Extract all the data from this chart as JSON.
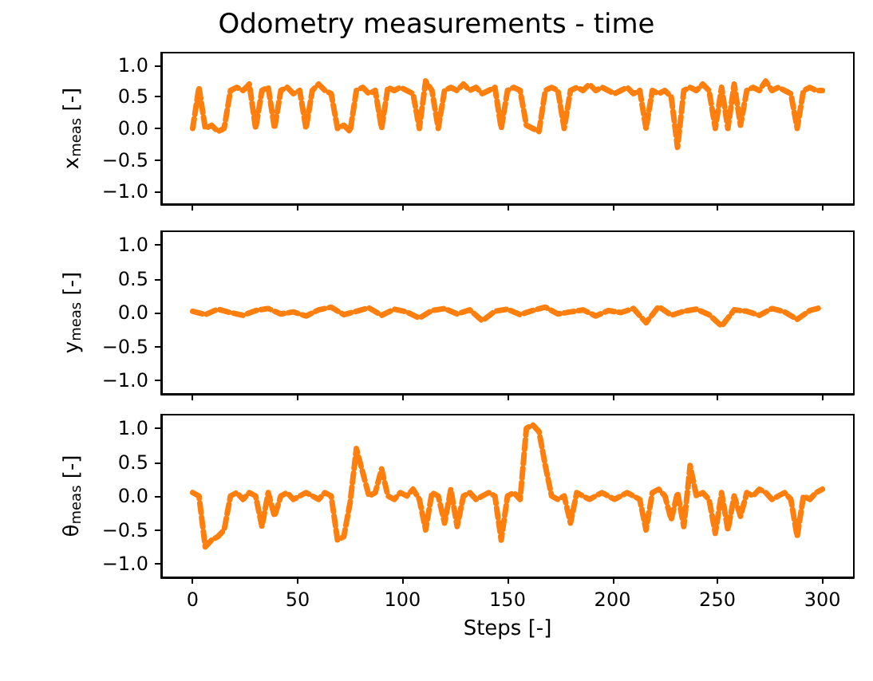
{
  "chart_data": [
    {
      "type": "line",
      "title": "Odometry measurements - time",
      "ylabel": "x$_{meas}$ [-]",
      "xlim": [
        -15,
        315
      ],
      "ylim": [
        -1.2,
        1.2
      ],
      "xticks": [
        0,
        50,
        100,
        150,
        200,
        250,
        300
      ],
      "yticks": [
        {
          "value": -1,
          "label": "−1.0"
        },
        {
          "value": -0.5,
          "label": "−0.5"
        },
        {
          "value": 0,
          "label": "0.0"
        },
        {
          "value": 0.5,
          "label": "0.5"
        },
        {
          "value": 1,
          "label": "1.0"
        }
      ],
      "tick_labels": "y",
      "grid": false,
      "line_style": "dashed",
      "marker": "none",
      "x": [
        0,
        3,
        6,
        9,
        12,
        15,
        18,
        21,
        24,
        27,
        30,
        33,
        36,
        39,
        42,
        45,
        48,
        51,
        54,
        57,
        60,
        63,
        66,
        69,
        72,
        75,
        78,
        81,
        84,
        87,
        90,
        93,
        96,
        99,
        102,
        105,
        108,
        111,
        114,
        117,
        120,
        123,
        126,
        129,
        132,
        135,
        138,
        141,
        144,
        147,
        150,
        153,
        156,
        159,
        162,
        165,
        168,
        171,
        174,
        177,
        180,
        183,
        186,
        189,
        192,
        195,
        198,
        201,
        204,
        207,
        210,
        213,
        216,
        219,
        222,
        225,
        228,
        231,
        234,
        237,
        240,
        243,
        246,
        249,
        252,
        255,
        258,
        261,
        264,
        267,
        270,
        273,
        276,
        279,
        282,
        285,
        288,
        291,
        294,
        297,
        300
      ],
      "series": [
        {
          "color": "#ff7f0e",
          "values": [
            0.0,
            0.65,
            0.0,
            0.05,
            -0.05,
            0.0,
            0.6,
            0.65,
            0.6,
            0.7,
            0.0,
            0.6,
            0.65,
            0.0,
            0.6,
            0.65,
            0.55,
            0.6,
            0.0,
            0.6,
            0.7,
            0.6,
            0.55,
            0.0,
            0.05,
            -0.05,
            0.6,
            0.65,
            0.55,
            0.6,
            0.0,
            0.65,
            0.6,
            0.65,
            0.6,
            0.55,
            0.0,
            0.75,
            0.6,
            0.0,
            0.6,
            0.65,
            0.6,
            0.7,
            0.6,
            0.65,
            0.55,
            0.6,
            0.65,
            0.0,
            0.6,
            0.65,
            0.6,
            0.05,
            0.0,
            -0.05,
            0.6,
            0.65,
            0.6,
            0.0,
            0.6,
            0.65,
            0.6,
            0.7,
            0.6,
            0.65,
            0.6,
            0.55,
            0.6,
            0.65,
            0.55,
            0.6,
            0.0,
            0.6,
            0.55,
            0.6,
            0.5,
            -0.3,
            0.6,
            0.65,
            0.6,
            0.7,
            0.6,
            0.0,
            0.65,
            0.0,
            0.7,
            0.05,
            0.6,
            0.65,
            0.6,
            0.75,
            0.6,
            0.65,
            0.6,
            0.55,
            0.0,
            0.6,
            0.65,
            0.6,
            0.6
          ]
        }
      ]
    },
    {
      "type": "line",
      "ylabel": "y$_{meas}$ [-]",
      "xlim": [
        -15,
        315
      ],
      "ylim": [
        -1.2,
        1.2
      ],
      "xticks": [
        0,
        50,
        100,
        150,
        200,
        250,
        300
      ],
      "yticks": [
        {
          "value": -1,
          "label": "−1.0"
        },
        {
          "value": -0.5,
          "label": "−0.5"
        },
        {
          "value": 0,
          "label": "0.0"
        },
        {
          "value": 0.5,
          "label": "0.5"
        },
        {
          "value": 1,
          "label": "1.0"
        }
      ],
      "tick_labels": "y",
      "grid": false,
      "line_style": "dashed",
      "marker": "none",
      "x": [
        0,
        6,
        12,
        18,
        24,
        30,
        36,
        42,
        48,
        54,
        60,
        66,
        72,
        78,
        84,
        90,
        96,
        102,
        108,
        114,
        120,
        126,
        132,
        138,
        144,
        150,
        156,
        162,
        168,
        174,
        180,
        186,
        192,
        198,
        204,
        210,
        216,
        222,
        228,
        234,
        240,
        246,
        252,
        258,
        264,
        270,
        276,
        282,
        288,
        294,
        300
      ],
      "series": [
        {
          "color": "#ff7f0e",
          "values": [
            0.02,
            -0.03,
            0.05,
            0.0,
            -0.04,
            0.03,
            0.06,
            -0.02,
            0.01,
            -0.05,
            0.04,
            0.08,
            -0.03,
            0.02,
            0.07,
            -0.04,
            0.05,
            0.01,
            -0.08,
            0.03,
            0.06,
            -0.02,
            0.04,
            -0.12,
            0.02,
            0.05,
            -0.03,
            0.03,
            0.08,
            -0.02,
            0.01,
            0.04,
            -0.05,
            0.03,
            0.0,
            0.06,
            -0.15,
            0.09,
            -0.04,
            0.02,
            0.05,
            -0.03,
            -0.2,
            0.04,
            0.02,
            -0.04,
            0.06,
            0.01,
            -0.1,
            0.03,
            0.08
          ]
        }
      ]
    },
    {
      "type": "line",
      "xlabel": "Steps [-]",
      "ylabel": "θ$_{meas}$ [-]",
      "xlim": [
        -15,
        315
      ],
      "ylim": [
        -1.2,
        1.2
      ],
      "xticks": [
        0,
        50,
        100,
        150,
        200,
        250,
        300
      ],
      "yticks": [
        {
          "value": -1,
          "label": "−1.0"
        },
        {
          "value": -0.5,
          "label": "−0.5"
        },
        {
          "value": 0,
          "label": "0.0"
        },
        {
          "value": 0.5,
          "label": "0.5"
        },
        {
          "value": 1,
          "label": "1.0"
        }
      ],
      "grid": false,
      "line_style": "dashed",
      "marker": "none",
      "x": [
        0,
        3,
        6,
        9,
        12,
        15,
        18,
        21,
        24,
        27,
        30,
        33,
        36,
        39,
        42,
        45,
        48,
        51,
        54,
        57,
        60,
        63,
        66,
        69,
        72,
        75,
        78,
        81,
        84,
        87,
        90,
        93,
        96,
        99,
        102,
        105,
        108,
        111,
        114,
        117,
        120,
        123,
        126,
        129,
        132,
        135,
        138,
        141,
        144,
        147,
        150,
        153,
        156,
        159,
        162,
        165,
        168,
        171,
        174,
        177,
        180,
        183,
        186,
        189,
        192,
        195,
        198,
        201,
        204,
        207,
        210,
        213,
        216,
        219,
        222,
        225,
        228,
        231,
        234,
        237,
        240,
        243,
        246,
        249,
        252,
        255,
        258,
        261,
        264,
        267,
        270,
        273,
        276,
        279,
        282,
        285,
        288,
        291,
        294,
        297,
        300
      ],
      "series": [
        {
          "color": "#ff7f0e",
          "values": [
            0.05,
            0.0,
            -0.75,
            -0.65,
            -0.6,
            -0.5,
            0.0,
            0.05,
            -0.05,
            0.05,
            0.0,
            -0.45,
            0.05,
            -0.3,
            0.0,
            0.05,
            -0.05,
            0.0,
            0.05,
            0.0,
            -0.05,
            0.05,
            0.0,
            -0.65,
            -0.6,
            -0.1,
            0.7,
            0.35,
            0.0,
            0.05,
            0.4,
            0.0,
            -0.05,
            0.05,
            0.0,
            0.1,
            -0.05,
            -0.5,
            0.05,
            0.0,
            -0.4,
            0.1,
            -0.45,
            0.0,
            0.05,
            -0.05,
            0.0,
            0.05,
            0.0,
            -0.65,
            0.0,
            0.05,
            -0.05,
            1.0,
            1.05,
            0.95,
            0.45,
            0.0,
            -0.05,
            0.0,
            -0.4,
            0.05,
            0.0,
            -0.05,
            0.0,
            0.05,
            0.0,
            -0.05,
            0.0,
            0.05,
            0.0,
            -0.05,
            -0.5,
            0.05,
            0.1,
            0.0,
            -0.35,
            0.05,
            -0.45,
            0.45,
            0.0,
            0.05,
            -0.05,
            -0.55,
            0.05,
            -0.5,
            0.0,
            -0.3,
            0.05,
            0.0,
            0.1,
            0.05,
            -0.05,
            0.0,
            0.05,
            -0.05,
            -0.6,
            0.0,
            -0.05,
            0.05,
            0.1
          ]
        }
      ]
    }
  ]
}
